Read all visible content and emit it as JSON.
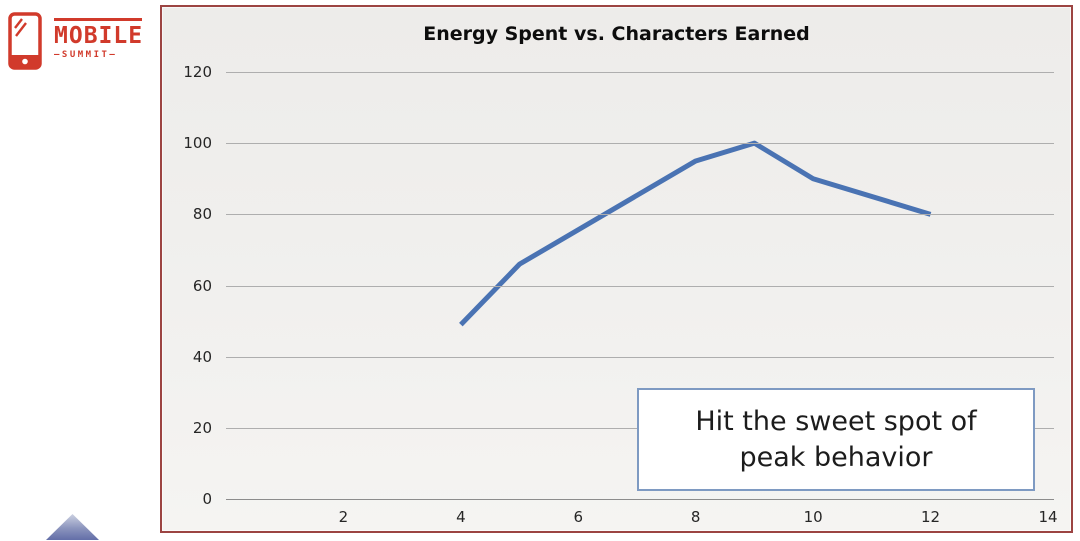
{
  "logo": {
    "brand": "MOBILE",
    "tagline": "—SUMMIT—",
    "color": "#d13a2b"
  },
  "chart": {
    "title": "Energy Spent vs. Characters Earned",
    "frame_border_color": "#9c4442",
    "gridline_color": "#aeaeae",
    "axis_line_color": "#8c8c8c",
    "line_color": "#4a73b3",
    "tick_label_color": "#262626"
  },
  "annotation": {
    "line1": "Hit the sweet spot of",
    "line2": "peak behavior",
    "border_color": "#7e9ac2"
  },
  "chart_data": {
    "type": "line",
    "title": "Energy Spent vs. Characters Earned",
    "x": [
      4,
      5,
      8,
      9,
      10,
      12
    ],
    "y": [
      49,
      66,
      95,
      100,
      90,
      80
    ],
    "xlim": [
      0,
      14
    ],
    "ylim": [
      0,
      120
    ],
    "x_ticks": [
      2,
      4,
      6,
      8,
      10,
      12,
      14
    ],
    "y_ticks": [
      0,
      20,
      40,
      60,
      80,
      100,
      120
    ],
    "grid": "horizontal",
    "legend": "none",
    "annotation": "Hit the sweet spot of peak behavior"
  },
  "decoration": {
    "triangle_top_color": "#ccd1e1",
    "triangle_bottom_color": "#636ea8"
  }
}
